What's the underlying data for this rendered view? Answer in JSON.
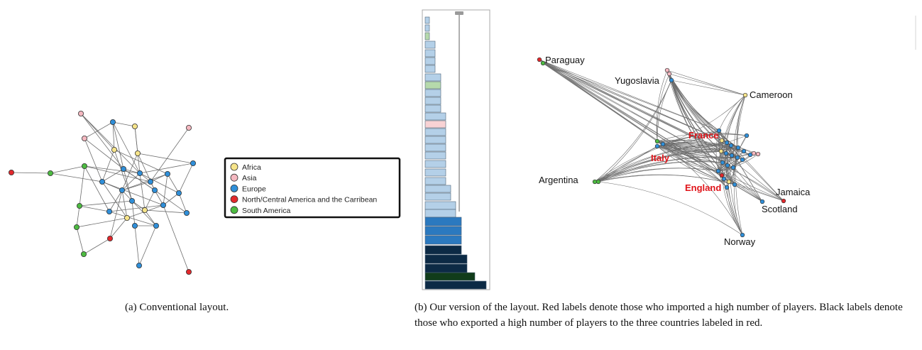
{
  "legend": {
    "entries": [
      {
        "label": "Africa",
        "color": "#f6e48a"
      },
      {
        "label": "Asia",
        "color": "#f4b8c0"
      },
      {
        "label": "Europe",
        "color": "#2f8fd9"
      },
      {
        "label": "North/Central America and the Carribean",
        "color": "#e2282c"
      },
      {
        "label": "South America",
        "color": "#4dbb41"
      }
    ]
  },
  "region_colors": {
    "africa": "#f6e48a",
    "asia": "#f4b8c0",
    "europe": "#2f8fd9",
    "na": "#e2282c",
    "sa": "#4dbb41"
  },
  "histogram": {
    "bar_colors": {
      "light": "#b4d0e8",
      "green": "#b6d9ab",
      "pink": "#f8d2d4",
      "mid": "#2b79bf",
      "dark": "#0c2a45",
      "darkgreen": "#113c1a"
    }
  },
  "graph_b": {
    "labels": {
      "paraguay": "Paraguay",
      "yugoslavia": "Yugoslavia",
      "cameroon": "Cameroon",
      "france": "France",
      "italy": "Italy",
      "argentina": "Argentina",
      "england": "England",
      "jamaica": "Jamaica",
      "scotland": "Scotland",
      "norway": "Norway"
    },
    "importer_label_color": "#e0141a",
    "exporter_label_color": "#111111"
  },
  "captions": {
    "a": "(a)  Conventional layout.",
    "b": "(b)  Our version of the layout. Red labels denote those who imported a high number of players. Black labels denote those who exported a high number of players to the three countries labeled in red."
  }
}
